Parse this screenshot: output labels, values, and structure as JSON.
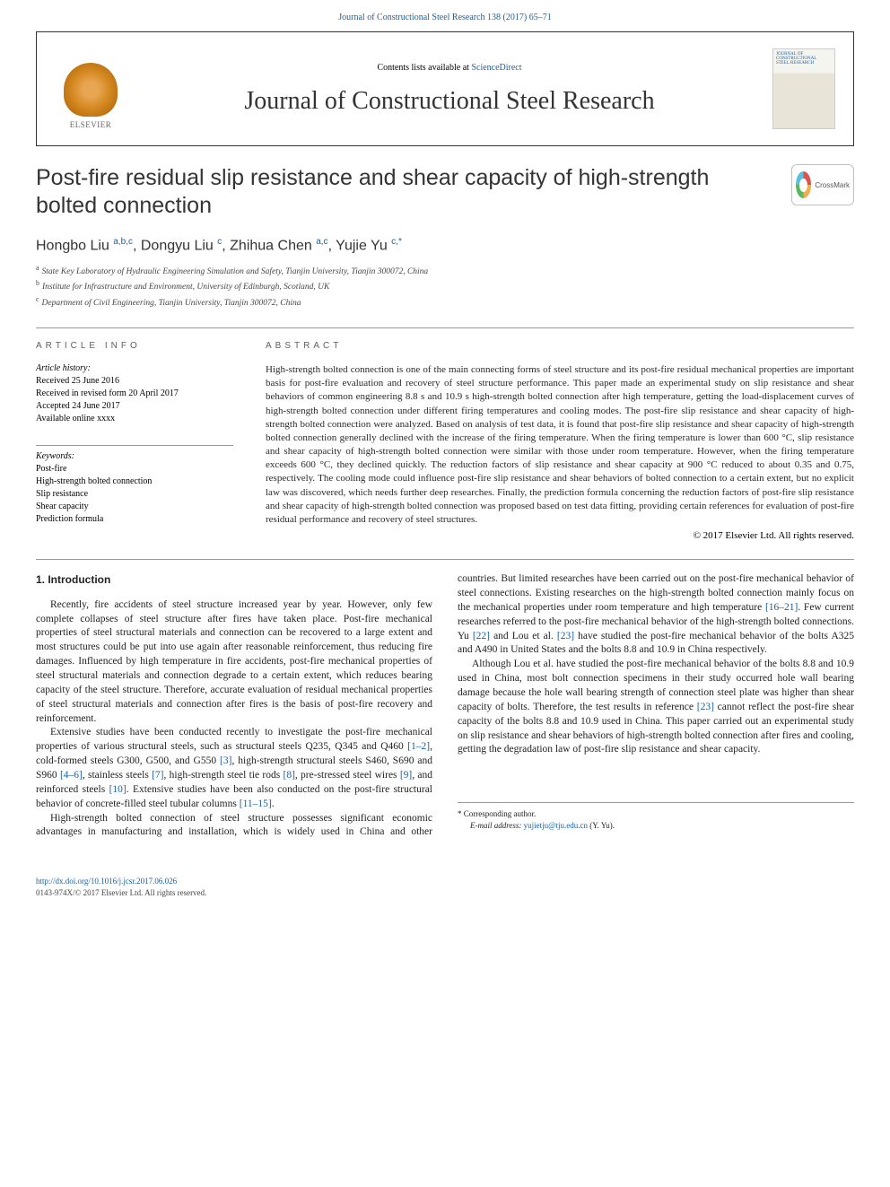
{
  "top_link": {
    "journal_citation": "Journal of Constructional Steel Research 138 (2017) 65–71"
  },
  "header": {
    "contents_prefix": "Contents lists available at ",
    "contents_link": "ScienceDirect",
    "journal_name": "Journal of Constructional Steel Research",
    "elsevier_label": "ELSEVIER",
    "cover_line1": "JOURNAL OF",
    "cover_line2": "CONSTRUCTIONAL",
    "cover_line3": "STEEL RESEARCH"
  },
  "article": {
    "title": "Post-fire residual slip resistance and shear capacity of high-strength bolted connection",
    "crossmark_label": "CrossMark",
    "authors_html": [
      {
        "name": "Hongbo Liu ",
        "sup": "a,b,c",
        "trail": ", "
      },
      {
        "name": "Dongyu Liu ",
        "sup": "c",
        "trail": ", "
      },
      {
        "name": "Zhihua Chen ",
        "sup": "a,c",
        "trail": ", "
      },
      {
        "name": "Yujie Yu ",
        "sup": "c,",
        "trail": "",
        "corr": "*"
      }
    ],
    "affiliations": [
      {
        "sup": "a",
        "text": "State Key Laboratory of Hydraulic Engineering Simulation and Safety, Tianjin University, Tianjin 300072, China"
      },
      {
        "sup": "b",
        "text": "Institute for Infrastructure and Environment, University of Edinburgh, Scotland, UK"
      },
      {
        "sup": "c",
        "text": "Department of Civil Engineering, Tianjin University, Tianjin 300072, China"
      }
    ]
  },
  "info": {
    "left_heading": "article info",
    "history_label": "Article history:",
    "history": [
      "Received 25 June 2016",
      "Received in revised form 20 April 2017",
      "Accepted 24 June 2017",
      "Available online xxxx"
    ],
    "keywords_label": "Keywords:",
    "keywords": [
      "Post-fire",
      "High-strength bolted connection",
      "Slip resistance",
      "Shear capacity",
      "Prediction formula"
    ],
    "right_heading": "abstract",
    "abstract": "High-strength bolted connection is one of the main connecting forms of steel structure and its post-fire residual mechanical properties are important basis for post-fire evaluation and recovery of steel structure performance. This paper made an experimental study on slip resistance and shear behaviors of common engineering 8.8 s and 10.9 s high-strength bolted connection after high temperature, getting the load-displacement curves of high-strength bolted connection under different firing temperatures and cooling modes. The post-fire slip resistance and shear capacity of high-strength bolted connection were analyzed. Based on analysis of test data, it is found that post-fire slip resistance and shear capacity of high-strength bolted connection generally declined with the increase of the firing temperature. When the firing temperature is lower than 600 °C, slip resistance and shear capacity of high-strength bolted connection were similar with those under room temperature. However, when the firing temperature exceeds 600 °C, they declined quickly. The reduction factors of slip resistance and shear capacity at 900 °C reduced to about 0.35 and 0.75, respectively. The cooling mode could influence post-fire slip resistance and shear behaviors of bolted connection to a certain extent, but no explicit law was discovered, which needs further deep researches. Finally, the prediction formula concerning the reduction factors of post-fire slip resistance and shear capacity of high-strength bolted connection was proposed based on test data fitting, providing certain references for evaluation of post-fire residual performance and recovery of steel structures.",
    "copyright": "© 2017 Elsevier Ltd. All rights reserved."
  },
  "body": {
    "section_heading": "1. Introduction",
    "p1a": "Recently, fire accidents of steel structure increased year by year. However, only few complete collapses of steel structure after fires have taken place. Post-fire mechanical properties of steel structural materials and connection can be recovered to a large extent and most structures could be put into use again after reasonable reinforcement, thus reducing fire damages. Influenced by high temperature in fire accidents, post-fire mechanical properties of steel structural materials and connection degrade to a certain extent, which reduces bearing capacity of the steel structure. Therefore, accurate evaluation of residual mechanical properties of steel structural materials and connection after fires is the basis of post-fire recovery and reinforcement.",
    "p2_pre": "Extensive studies have been conducted recently to investigate the post-fire mechanical properties of various structural steels, such as structural steels Q235, Q345 and Q460 ",
    "ref12": "[1–2]",
    "p2_a": ", cold-formed steels G300, G500, and G550 ",
    "ref3": "[3]",
    "p2_b": ", high-strength structural steels S460, S690 and S960 ",
    "ref46": "[4–6]",
    "p2_c": ", stainless steels ",
    "ref7": "[7]",
    "p2_d": ", high-strength steel tie rods ",
    "ref8": "[8]",
    "p2_e": ", pre-stressed steel wires ",
    "ref9": "[9]",
    "p2_f": ", and reinforced steels ",
    "ref10": "[10]",
    "p2_g": ". Extensive studies have been also conducted on the post-fire structural behavior of concrete-filled steel tubular columns ",
    "ref1115": "[11–15]",
    "p2_end": ".",
    "p3_pre": "High-strength bolted connection of steel structure possesses significant economic advantages in manufacturing and installation, which is widely used in China and other countries. But limited researches have been carried out on the post-fire mechanical behavior of steel connections. Existing researches on the high-strength bolted connection mainly focus on the mechanical properties under room temperature and high temperature ",
    "ref1621": "[16–21]",
    "p3_a": ". Few current researches referred to the post-fire mechanical behavior of the high-strength bolted connections. Yu ",
    "ref22": "[22]",
    "p3_b": " and Lou et al. ",
    "ref23": "[23]",
    "p3_c": " have studied the post-fire mechanical behavior of the bolts A325 and A490 in United States and the bolts 8.8 and 10.9 in China respectively.",
    "p4_pre": "Although Lou et al. have studied the post-fire mechanical behavior of the bolts 8.8 and 10.9 used in China, most bolt connection specimens in their study occurred hole wall bearing damage because the hole wall bearing strength of connection steel plate was higher than shear capacity of bolts. Therefore, the test results in reference ",
    "ref23b": "[23]",
    "p4_a": " cannot reflect the post-fire shear capacity of the bolts 8.8 and 10.9 used in China. This paper carried out an experimental study on slip resistance and shear behaviors of high-strength bolted connection after fires and cooling, getting the degradation law of post-fire slip resistance and shear capacity.",
    "corr_label": "* Corresponding author.",
    "email_label": "E-mail address: ",
    "email": "yujietju@tju.edu.cn",
    "email_tail": " (Y. Yu)."
  },
  "footer": {
    "doi": "http://dx.doi.org/10.1016/j.jcsr.2017.06.026",
    "issn": "0143-974X/© 2017 Elsevier Ltd. All rights reserved."
  },
  "colors": {
    "link": "#1a5f9e",
    "text": "#222222",
    "rule": "#999999"
  }
}
